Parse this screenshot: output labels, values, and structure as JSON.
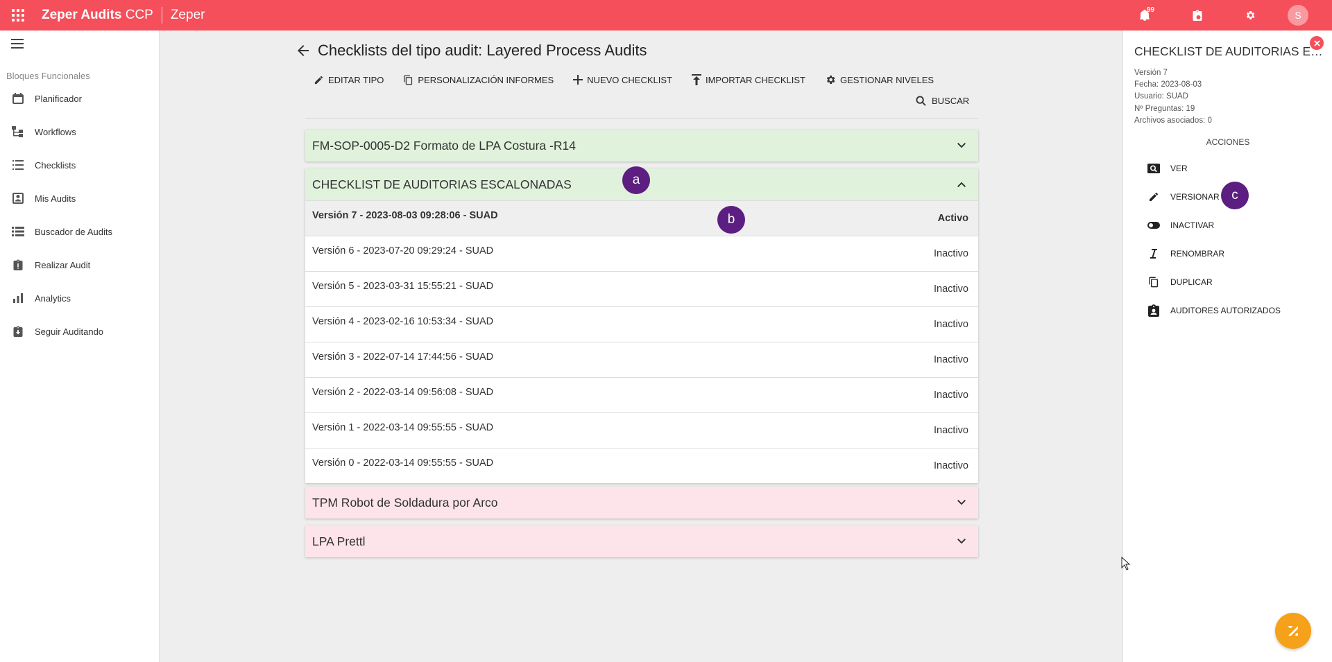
{
  "topbar": {
    "app_name_bold": "Zeper Audits",
    "app_name_rest": " CCP",
    "org": "Zeper",
    "notification_count": "99",
    "avatar_letter": "S"
  },
  "sidebar": {
    "section_label": "Bloques Funcionales",
    "items": [
      {
        "label": "Planificador",
        "icon": "calendar-icon"
      },
      {
        "label": "Workflows",
        "icon": "workflow-icon"
      },
      {
        "label": "Checklists",
        "icon": "list-icon"
      },
      {
        "label": "Mis Audits",
        "icon": "contact-card-icon"
      },
      {
        "label": "Buscador de Audits",
        "icon": "list-detail-icon"
      },
      {
        "label": "Realizar Audit",
        "icon": "clipboard-alert-icon"
      },
      {
        "label": "Analytics",
        "icon": "bar-chart-icon"
      },
      {
        "label": "Seguir Auditando",
        "icon": "clipboard-download-icon"
      }
    ]
  },
  "main": {
    "title": "Checklists del tipo audit: Layered Process Audits",
    "toolbar": {
      "edit_type": "EDITAR TIPO",
      "custom_reports": "PERSONALIZACIÓN INFORMES",
      "new_checklist": "NUEVO CHECKLIST",
      "import_checklist": "IMPORTAR CHECKLIST",
      "manage_levels": "GESTIONAR NIVELES"
    },
    "search_label": "BUSCAR",
    "checklists": [
      {
        "name": "FM-SOP-0005-D2 Formato de LPA Costura -R14",
        "color": "#e0f2dc"
      },
      {
        "name": "CHECKLIST DE AUDITORIAS ESCALONADAS",
        "color": "#e0f2dc",
        "versions": [
          {
            "label": "Versión 7 - 2023-08-03 09:28:06 - SUAD",
            "status": "Activo"
          },
          {
            "label": "Versión 6 - 2023-07-20 09:29:24 - SUAD",
            "status": "Inactivo"
          },
          {
            "label": "Versión 5 - 2023-03-31 15:55:21 - SUAD",
            "status": "Inactivo"
          },
          {
            "label": "Versión 4 - 2023-02-16 10:53:34 - SUAD",
            "status": "Inactivo"
          },
          {
            "label": "Versión 3 - 2022-07-14 17:44:56 - SUAD",
            "status": "Inactivo"
          },
          {
            "label": "Versión 2 - 2022-03-14 09:56:08 - SUAD",
            "status": "Inactivo"
          },
          {
            "label": "Versión 1 - 2022-03-14 09:55:55 - SUAD",
            "status": "Inactivo"
          },
          {
            "label": "Versión 0 - 2022-03-14 09:55:55 - SUAD",
            "status": "Inactivo"
          }
        ]
      },
      {
        "name": "TPM Robot de Soldadura por Arco",
        "color": "#fde4ea"
      },
      {
        "name": "LPA Prettl",
        "color": "#fde4ea"
      }
    ]
  },
  "detail_panel": {
    "title": "CHECKLIST DE AUDITORIAS ESCALONADAS",
    "meta": {
      "version": "Versión 7",
      "date": "Fecha: 2023-08-03",
      "user": "Usuario: SUAD",
      "questions": "Nº Preguntas: 19",
      "files": "Archivos asociados: 0"
    },
    "actions_header": "ACCIONES",
    "actions": [
      {
        "label": "VER",
        "icon": "view-icon"
      },
      {
        "label": "VERSIONAR",
        "icon": "pencil-icon"
      },
      {
        "label": "INACTIVAR",
        "icon": "toggle-icon"
      },
      {
        "label": "RENOMBRAR",
        "icon": "italic-cursor-icon"
      },
      {
        "label": "DUPLICAR",
        "icon": "copy-icon"
      },
      {
        "label": "AUDITORES AUTORIZADOS",
        "icon": "badge-person-icon"
      }
    ]
  },
  "markers": {
    "a": "a",
    "b": "b",
    "c": "c"
  },
  "colors": {
    "accent": "#f44f5a",
    "marker": "#5c1e80",
    "fab": "#f5a11a"
  }
}
